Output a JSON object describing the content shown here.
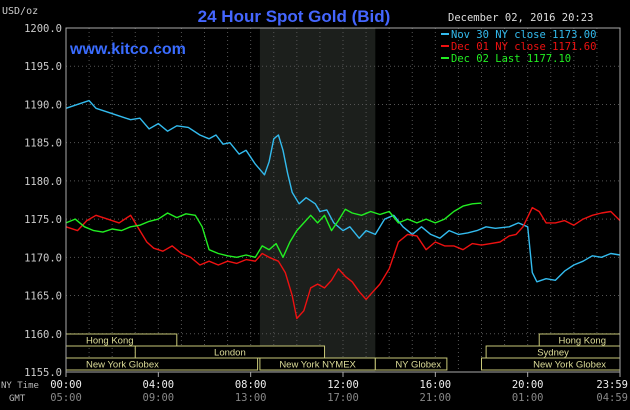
{
  "chart_data": {
    "type": "line",
    "title": "24 Hour Spot Gold (Bid)",
    "watermark": "www.kitco.com",
    "date_label": "December 02, 2016 20:23",
    "ylabel": "USD/oz",
    "ylim": [
      1155,
      1200
    ],
    "yticks": [
      "1200.0",
      "1195.0",
      "1190.0",
      "1185.0",
      "1180.0",
      "1175.0",
      "1170.0",
      "1165.0",
      "1160.0",
      "1155.0"
    ],
    "ytick_values": [
      1200,
      1195,
      1190,
      1185,
      1180,
      1175,
      1170,
      1165,
      1160,
      1155
    ],
    "x_row_ny_label": "NY Time",
    "x_row_gmt_label": "GMT",
    "xticks_ny": [
      "00:00",
      "04:00",
      "08:00",
      "12:00",
      "16:00",
      "20:00",
      "23:59"
    ],
    "xticks_gmt": [
      "05:00",
      "09:00",
      "13:00",
      "17:00",
      "21:00",
      "01:00",
      "04:59"
    ],
    "xtick_hours": [
      0,
      4,
      8,
      12,
      16,
      20,
      24
    ],
    "xlim_hours": [
      0,
      24
    ],
    "shaded_session_hours": [
      8.4,
      13.4
    ],
    "grid": true,
    "legend_position": "top-right",
    "series": [
      {
        "name": "Nov 30 NY close 1173.00",
        "color": "#33bbee",
        "points": [
          [
            0,
            1189.5
          ],
          [
            0.5,
            1190
          ],
          [
            1,
            1190.5
          ],
          [
            1.3,
            1189.5
          ],
          [
            1.8,
            1189
          ],
          [
            2.3,
            1188.5
          ],
          [
            2.8,
            1188
          ],
          [
            3.2,
            1188.2
          ],
          [
            3.6,
            1186.8
          ],
          [
            4.0,
            1187.5
          ],
          [
            4.4,
            1186.5
          ],
          [
            4.8,
            1187.2
          ],
          [
            5.3,
            1187
          ],
          [
            5.8,
            1186
          ],
          [
            6.2,
            1185.5
          ],
          [
            6.5,
            1186
          ],
          [
            6.8,
            1184.8
          ],
          [
            7.1,
            1185
          ],
          [
            7.5,
            1183.5
          ],
          [
            7.8,
            1184
          ],
          [
            8.2,
            1182.2
          ],
          [
            8.6,
            1180.8
          ],
          [
            8.8,
            1182.5
          ],
          [
            9.0,
            1185.5
          ],
          [
            9.2,
            1186
          ],
          [
            9.4,
            1184
          ],
          [
            9.6,
            1181
          ],
          [
            9.8,
            1178.5
          ],
          [
            10.1,
            1177
          ],
          [
            10.4,
            1177.8
          ],
          [
            10.8,
            1177
          ],
          [
            11.0,
            1176
          ],
          [
            11.3,
            1176.2
          ],
          [
            11.6,
            1174.5
          ],
          [
            12.0,
            1173.5
          ],
          [
            12.3,
            1174
          ],
          [
            12.7,
            1172.5
          ],
          [
            13.0,
            1173.5
          ],
          [
            13.4,
            1173
          ],
          [
            13.8,
            1175
          ],
          [
            14.2,
            1175.5
          ],
          [
            14.6,
            1174
          ],
          [
            15.0,
            1173
          ],
          [
            15.4,
            1174
          ],
          [
            15.8,
            1173
          ],
          [
            16.2,
            1172.5
          ],
          [
            16.6,
            1173.5
          ],
          [
            17.0,
            1173
          ],
          [
            17.4,
            1173.2
          ],
          [
            17.8,
            1173.5
          ],
          [
            18.2,
            1174
          ],
          [
            18.6,
            1173.8
          ],
          [
            19.2,
            1174
          ],
          [
            19.6,
            1174.5
          ],
          [
            20.0,
            1174
          ],
          [
            20.2,
            1168
          ],
          [
            20.4,
            1166.8
          ],
          [
            20.8,
            1167.2
          ],
          [
            21.2,
            1167
          ],
          [
            21.6,
            1168.2
          ],
          [
            22.0,
            1169
          ],
          [
            22.4,
            1169.5
          ],
          [
            22.8,
            1170.2
          ],
          [
            23.2,
            1170
          ],
          [
            23.6,
            1170.5
          ],
          [
            24,
            1170.3
          ]
        ]
      },
      {
        "name": "Dec 01 NY close 1171.60",
        "color": "#ee1111",
        "points": [
          [
            0,
            1174
          ],
          [
            0.5,
            1173.5
          ],
          [
            0.9,
            1174.8
          ],
          [
            1.3,
            1175.5
          ],
          [
            1.8,
            1175
          ],
          [
            2.3,
            1174.5
          ],
          [
            2.8,
            1175.5
          ],
          [
            3.2,
            1173.5
          ],
          [
            3.5,
            1172
          ],
          [
            3.8,
            1171.2
          ],
          [
            4.2,
            1170.8
          ],
          [
            4.6,
            1171.5
          ],
          [
            5.0,
            1170.5
          ],
          [
            5.4,
            1170
          ],
          [
            5.8,
            1169
          ],
          [
            6.2,
            1169.5
          ],
          [
            6.6,
            1169
          ],
          [
            7.0,
            1169.5
          ],
          [
            7.4,
            1169.2
          ],
          [
            7.8,
            1169.7
          ],
          [
            8.2,
            1169.5
          ],
          [
            8.5,
            1170.5
          ],
          [
            8.8,
            1170
          ],
          [
            9.2,
            1169.5
          ],
          [
            9.5,
            1168
          ],
          [
            9.8,
            1165
          ],
          [
            10.0,
            1162
          ],
          [
            10.3,
            1163
          ],
          [
            10.6,
            1166
          ],
          [
            10.9,
            1166.5
          ],
          [
            11.2,
            1166
          ],
          [
            11.5,
            1167
          ],
          [
            11.8,
            1168.5
          ],
          [
            12.1,
            1167.5
          ],
          [
            12.4,
            1166.8
          ],
          [
            12.7,
            1165.5
          ],
          [
            13.0,
            1164.5
          ],
          [
            13.3,
            1165.5
          ],
          [
            13.6,
            1166.5
          ],
          [
            14.0,
            1168.5
          ],
          [
            14.4,
            1172
          ],
          [
            14.8,
            1173
          ],
          [
            15.2,
            1172.8
          ],
          [
            15.6,
            1171
          ],
          [
            16.0,
            1172
          ],
          [
            16.4,
            1171.5
          ],
          [
            16.8,
            1171.5
          ],
          [
            17.2,
            1171
          ],
          [
            17.6,
            1171.8
          ],
          [
            18.0,
            1171.6
          ],
          [
            18.4,
            1171.8
          ],
          [
            18.8,
            1172
          ],
          [
            19.2,
            1172.8
          ],
          [
            19.5,
            1173
          ],
          [
            19.8,
            1174
          ],
          [
            20.2,
            1176.5
          ],
          [
            20.5,
            1176
          ],
          [
            20.8,
            1174.5
          ],
          [
            21.2,
            1174.5
          ],
          [
            21.6,
            1174.8
          ],
          [
            22.0,
            1174.2
          ],
          [
            22.4,
            1175
          ],
          [
            22.8,
            1175.5
          ],
          [
            23.2,
            1175.8
          ],
          [
            23.6,
            1176
          ],
          [
            24,
            1174.8
          ]
        ]
      },
      {
        "name": "Dec 02 Last 1177.10",
        "color": "#22ee22",
        "points": [
          [
            0,
            1174.5
          ],
          [
            0.4,
            1175
          ],
          [
            0.8,
            1174
          ],
          [
            1.2,
            1173.5
          ],
          [
            1.6,
            1173.3
          ],
          [
            2.0,
            1173.7
          ],
          [
            2.4,
            1173.5
          ],
          [
            2.8,
            1174
          ],
          [
            3.2,
            1174.2
          ],
          [
            3.6,
            1174.7
          ],
          [
            4.0,
            1175
          ],
          [
            4.4,
            1175.8
          ],
          [
            4.8,
            1175.2
          ],
          [
            5.2,
            1175.7
          ],
          [
            5.6,
            1175.5
          ],
          [
            5.9,
            1174
          ],
          [
            6.2,
            1171
          ],
          [
            6.6,
            1170.5
          ],
          [
            7.0,
            1170.2
          ],
          [
            7.4,
            1170
          ],
          [
            7.8,
            1170.3
          ],
          [
            8.2,
            1170
          ],
          [
            8.5,
            1171.5
          ],
          [
            8.8,
            1171
          ],
          [
            9.1,
            1171.8
          ],
          [
            9.4,
            1170
          ],
          [
            9.7,
            1172
          ],
          [
            10.0,
            1173.5
          ],
          [
            10.3,
            1174.5
          ],
          [
            10.6,
            1175.5
          ],
          [
            10.9,
            1174.5
          ],
          [
            11.2,
            1175.5
          ],
          [
            11.5,
            1173.5
          ],
          [
            11.8,
            1174.8
          ],
          [
            12.1,
            1176.3
          ],
          [
            12.4,
            1175.8
          ],
          [
            12.8,
            1175.5
          ],
          [
            13.2,
            1176
          ],
          [
            13.6,
            1175.6
          ],
          [
            14.0,
            1176
          ],
          [
            14.4,
            1174.5
          ],
          [
            14.8,
            1175
          ],
          [
            15.2,
            1174.5
          ],
          [
            15.6,
            1175
          ],
          [
            16.0,
            1174.5
          ],
          [
            16.4,
            1175
          ],
          [
            16.8,
            1176
          ],
          [
            17.2,
            1176.7
          ],
          [
            17.6,
            1177
          ],
          [
            18.0,
            1177.1
          ]
        ]
      }
    ],
    "session_bars": [
      {
        "label": "Hong Kong",
        "row": 0,
        "start_hour": -0.5,
        "end_hour": 4.8,
        "align": "start"
      },
      {
        "label": "Hong Kong",
        "row": 0,
        "start_hour": 20.5,
        "end_hour": 24.5,
        "align": "end"
      },
      {
        "label": "London",
        "row": 1,
        "start_hour": 3,
        "end_hour": 11.2,
        "align": "middle"
      },
      {
        "label": "Sydney",
        "row": 1,
        "start_hour": 18.2,
        "end_hour": 24.5,
        "align": "middle"
      },
      {
        "label": "New York Globex",
        "row": 2,
        "start_hour": -0.5,
        "end_hour": 8.3,
        "align": "start"
      },
      {
        "label": "New York NYMEX",
        "row": 2,
        "start_hour": 8.4,
        "end_hour": 13.4,
        "align": "middle"
      },
      {
        "label": "NY Globex",
        "row": 2,
        "start_hour": 13.4,
        "end_hour": 16.5,
        "align": "start"
      },
      {
        "label": "New York Globex",
        "row": 2,
        "start_hour": 18,
        "end_hour": 24.5,
        "align": "end"
      }
    ]
  }
}
